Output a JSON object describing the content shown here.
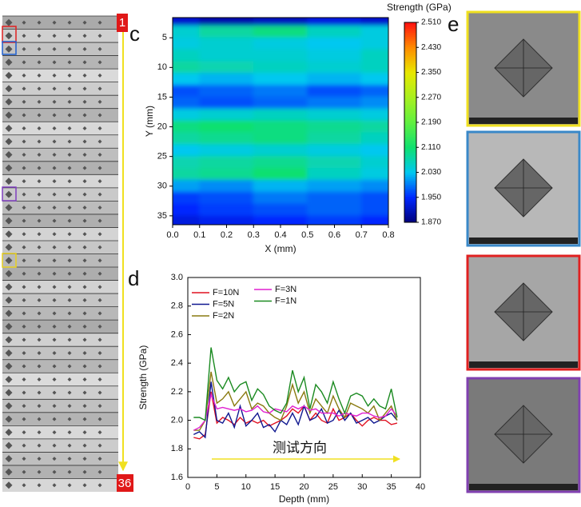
{
  "panel_labels": [
    "c",
    "d",
    "e"
  ],
  "strip": {
    "first": "1",
    "last": "36"
  },
  "chart_data": [
    {
      "type": "heatmap",
      "title": "Strength (GPa)",
      "x_label": "X (mm)",
      "y_label": "Y (mm)",
      "x": [
        0,
        0.2,
        0.4,
        0.6,
        0.8
      ],
      "y": [
        2,
        4,
        6,
        8,
        10,
        12,
        14,
        16,
        18,
        20,
        22,
        24,
        26,
        28,
        30,
        32,
        34,
        36
      ],
      "z": [
        [
          1.92,
          1.9,
          1.91,
          1.93,
          1.92
        ],
        [
          2.05,
          2.08,
          2.1,
          2.06,
          2.04
        ],
        [
          2.04,
          2.05,
          2.04,
          2.03,
          2.04
        ],
        [
          2.06,
          2.05,
          2.05,
          2.04,
          2.06
        ],
        [
          2.08,
          2.07,
          2.06,
          2.05,
          2.06
        ],
        [
          2.03,
          2.02,
          2.03,
          2.02,
          2.03
        ],
        [
          1.97,
          1.98,
          1.99,
          1.97,
          1.98
        ],
        [
          1.98,
          1.97,
          1.98,
          1.99,
          2.0
        ],
        [
          2.04,
          2.05,
          2.06,
          2.05,
          2.04
        ],
        [
          2.1,
          2.11,
          2.1,
          2.09,
          2.08
        ],
        [
          2.08,
          2.09,
          2.1,
          2.08,
          2.06
        ],
        [
          2.03,
          2.04,
          2.05,
          2.04,
          2.03
        ],
        [
          2.07,
          2.08,
          2.09,
          2.07,
          2.05
        ],
        [
          2.08,
          2.09,
          2.11,
          2.06,
          2.04
        ],
        [
          2.01,
          2.0,
          2.02,
          2.01,
          2.0
        ],
        [
          1.96,
          1.97,
          1.99,
          1.98,
          1.97
        ],
        [
          1.95,
          1.96,
          1.97,
          1.98,
          1.97
        ],
        [
          1.93,
          1.94,
          1.95,
          1.96,
          1.95
        ]
      ],
      "xlim": [
        0,
        0.8
      ],
      "ylim": [
        36.5,
        1.6
      ],
      "xticks": [
        {
          "value": 0,
          "label": "0.0"
        },
        0.1,
        0.2,
        0.3,
        0.4,
        0.5,
        0.6,
        0.7,
        0.8
      ],
      "yticks": [
        5,
        10,
        15,
        20,
        25,
        30,
        35
      ],
      "zlim": [
        1.87,
        2.51
      ],
      "zticks": [
        {
          "value": 1.87,
          "label": "1.870"
        },
        {
          "value": 1.95,
          "label": "1.950"
        },
        {
          "value": 2.03,
          "label": "2.030"
        },
        {
          "value": 2.11,
          "label": "2.110"
        },
        {
          "value": 2.19,
          "label": "2.190"
        },
        {
          "value": 2.27,
          "label": "2.270"
        },
        {
          "value": 2.35,
          "label": "2.350"
        },
        {
          "value": 2.43,
          "label": "2.430"
        },
        {
          "value": 2.51,
          "label": "2.510"
        }
      ],
      "colormap": [
        "#00007a",
        "#0028ff",
        "#00c8f0",
        "#10e070",
        "#60f040",
        "#a8f020",
        "#e8e800",
        "#ff8c00",
        "#ff1010"
      ]
    },
    {
      "type": "line",
      "x_label": "Depth (mm)",
      "y_label": "Strength (GPa)",
      "annotation": "测试方向",
      "x": [
        1,
        2,
        3,
        4,
        5,
        6,
        7,
        8,
        9,
        10,
        11,
        12,
        13,
        14,
        15,
        16,
        17,
        18,
        19,
        20,
        21,
        22,
        23,
        24,
        25,
        26,
        27,
        28,
        29,
        30,
        31,
        32,
        33,
        34,
        35,
        36
      ],
      "series": [
        {
          "name": "F=10N",
          "color": "#e01020",
          "values": [
            1.88,
            1.87,
            1.9,
            2.2,
            1.98,
            2.02,
            2.0,
            1.97,
            2.02,
            1.98,
            2.0,
            1.98,
            2.0,
            1.96,
            1.98,
            2.0,
            2.03,
            2.08,
            2.05,
            2.1,
            2.0,
            2.05,
            2.0,
            1.98,
            2.08,
            2.0,
            2.02,
            2.05,
            2.0,
            1.96,
            2.0,
            2.02,
            2.0,
            2.0,
            1.97,
            1.98
          ]
        },
        {
          "name": "F=5N",
          "color": "#101890",
          "values": [
            1.9,
            1.92,
            1.88,
            2.27,
            2.0,
            1.98,
            2.05,
            1.95,
            2.1,
            1.96,
            2.0,
            2.05,
            1.95,
            1.97,
            1.92,
            2.0,
            1.97,
            2.05,
            1.97,
            2.1,
            2.0,
            2.02,
            2.08,
            1.98,
            2.0,
            2.07,
            2.0,
            2.05,
            1.98,
            2.0,
            2.02,
            1.98,
            2.0,
            2.03,
            2.05,
            2.0
          ]
        },
        {
          "name": "F=2N",
          "color": "#8a7a10",
          "values": [
            1.93,
            1.93,
            2.0,
            2.34,
            2.12,
            2.15,
            2.2,
            2.1,
            2.15,
            2.2,
            2.08,
            2.12,
            2.1,
            2.05,
            2.02,
            2.0,
            2.1,
            2.25,
            2.12,
            2.2,
            2.05,
            2.15,
            2.1,
            2.05,
            2.17,
            2.08,
            2.02,
            2.12,
            2.1,
            2.08,
            2.05,
            2.1,
            2.0,
            2.05,
            2.1,
            2.0
          ]
        },
        {
          "name": "F=3N",
          "color": "#e020d0",
          "values": [
            1.93,
            1.95,
            2.0,
            2.18,
            2.08,
            2.09,
            2.08,
            2.07,
            2.08,
            2.06,
            2.07,
            2.1,
            2.06,
            2.05,
            2.08,
            2.07,
            2.06,
            2.1,
            2.08,
            2.1,
            2.07,
            2.08,
            2.05,
            2.05,
            2.05,
            2.03,
            2.05,
            2.04,
            2.03,
            2.05,
            2.05,
            2.03,
            2.02,
            2.03,
            2.08,
            2.03
          ]
        },
        {
          "name": "F=1N",
          "color": "#1a8a20",
          "values": [
            2.02,
            2.02,
            2.0,
            2.51,
            2.28,
            2.22,
            2.3,
            2.2,
            2.25,
            2.27,
            2.14,
            2.22,
            2.18,
            2.1,
            2.07,
            2.05,
            2.12,
            2.35,
            2.2,
            2.3,
            2.08,
            2.25,
            2.2,
            2.12,
            2.27,
            2.15,
            2.05,
            2.17,
            2.19,
            2.17,
            2.1,
            2.15,
            2.1,
            2.08,
            2.22,
            2.02
          ]
        }
      ],
      "xlim": [
        0,
        40
      ],
      "ylim": [
        1.6,
        3.0
      ],
      "xticks": [
        0,
        5,
        10,
        15,
        20,
        25,
        30,
        35,
        40
      ],
      "yticks": [
        1.6,
        1.8,
        {
          "value": 2,
          "label": "2.0"
        },
        2.2,
        2.4,
        2.6,
        2.8,
        {
          "value": 3,
          "label": "3.0"
        }
      ]
    }
  ]
}
